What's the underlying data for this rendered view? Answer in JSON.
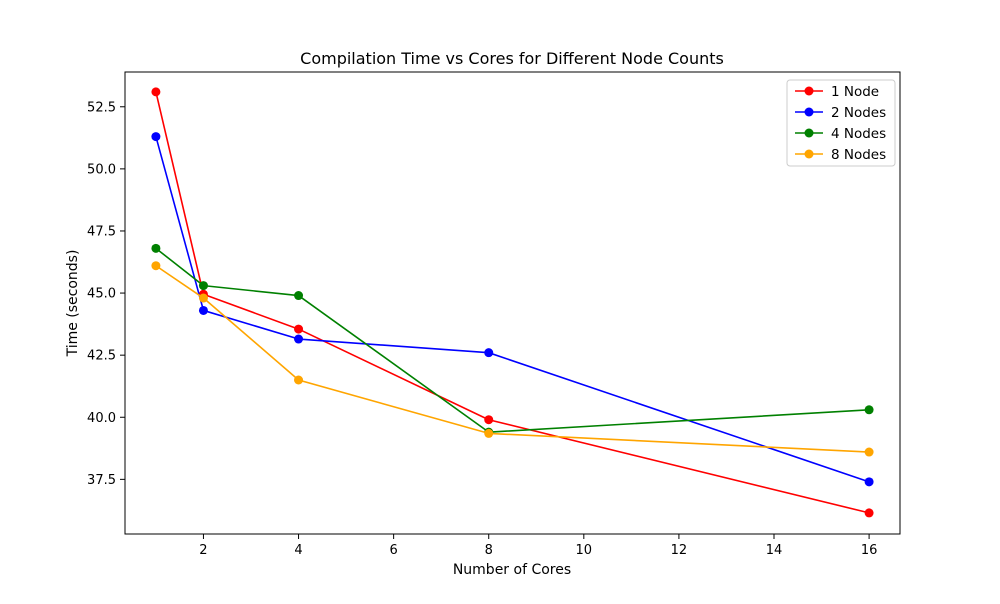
{
  "chart_data": {
    "type": "line",
    "title": "Compilation Time vs Cores for Different Node Counts",
    "xlabel": "Number of Cores",
    "ylabel": "Time (seconds)",
    "x": [
      1,
      2,
      4,
      8,
      16
    ],
    "xlim": [
      0.35,
      16.65
    ],
    "ylim": [
      35.3,
      53.9
    ],
    "xticks": [
      2,
      4,
      6,
      8,
      10,
      12,
      14,
      16
    ],
    "xtick_labels": [
      "2",
      "4",
      "6",
      "8",
      "10",
      "12",
      "14",
      "16"
    ],
    "yticks": [
      37.5,
      40.0,
      42.5,
      45.0,
      47.5,
      50.0,
      52.5
    ],
    "ytick_labels": [
      "37.5",
      "40.0",
      "42.5",
      "45.0",
      "47.5",
      "50.0",
      "52.5"
    ],
    "grid": false,
    "legend_position": "top-right",
    "series": [
      {
        "name": "1 Node",
        "color": "#ff0000",
        "marker": "circle",
        "values": [
          53.1,
          44.95,
          43.55,
          39.9,
          36.15
        ]
      },
      {
        "name": "2 Nodes",
        "color": "#0000ff",
        "marker": "circle",
        "values": [
          51.3,
          44.3,
          43.15,
          42.6,
          37.4
        ]
      },
      {
        "name": "4 Nodes",
        "color": "#008000",
        "marker": "circle",
        "values": [
          46.8,
          45.3,
          44.9,
          39.4,
          40.3
        ]
      },
      {
        "name": "8 Nodes",
        "color": "#ffa500",
        "marker": "circle",
        "values": [
          46.1,
          44.8,
          41.5,
          39.35,
          38.6
        ]
      }
    ]
  }
}
